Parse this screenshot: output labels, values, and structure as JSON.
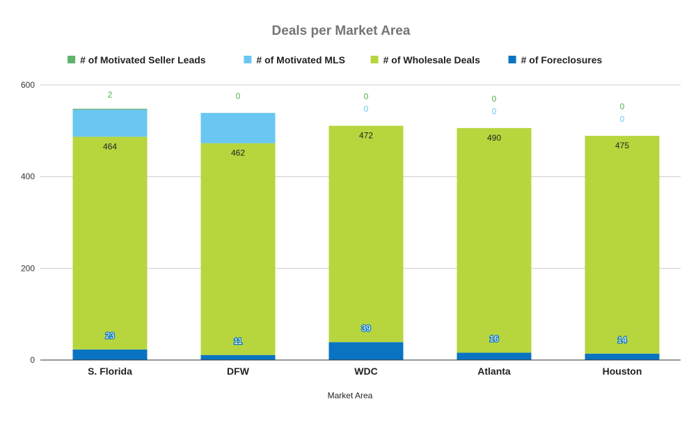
{
  "chart_data": {
    "type": "bar",
    "stacked": true,
    "title": "Deals per Market Area",
    "xlabel": "Market Area",
    "ylabel": "",
    "ylim": [
      0,
      600
    ],
    "yticks": [
      0,
      200,
      400,
      600
    ],
    "grid": true,
    "legend_position": "top",
    "categories": [
      "S. Florida",
      "DFW",
      "WDC",
      "Atlanta",
      "Houston"
    ],
    "series": [
      {
        "name": "# of Foreclosures",
        "color": "#0a74c2",
        "label_color": "#ffffff",
        "label_outline": true,
        "values": [
          23,
          11,
          39,
          16,
          14
        ]
      },
      {
        "name": "# of Wholesale Deals",
        "color": "#b7d63e",
        "label_color": "#222222",
        "label_outline": false,
        "values": [
          464,
          462,
          472,
          490,
          475
        ]
      },
      {
        "name": "# of Motivated MLS",
        "color": "#6ac7f2",
        "label_color": "#6ac7f2",
        "label_outline": false,
        "values": [
          59,
          66,
          0,
          0,
          0
        ]
      },
      {
        "name": "# of Motivated Seller Leads",
        "color": "#5fb36a",
        "label_color": "#4caf50",
        "label_outline": false,
        "values": [
          2,
          0,
          0,
          0,
          0
        ]
      }
    ],
    "legend_order": [
      "# of Motivated Seller Leads",
      "# of Motivated MLS",
      "# of Wholesale Deals",
      "# of Foreclosures"
    ]
  }
}
